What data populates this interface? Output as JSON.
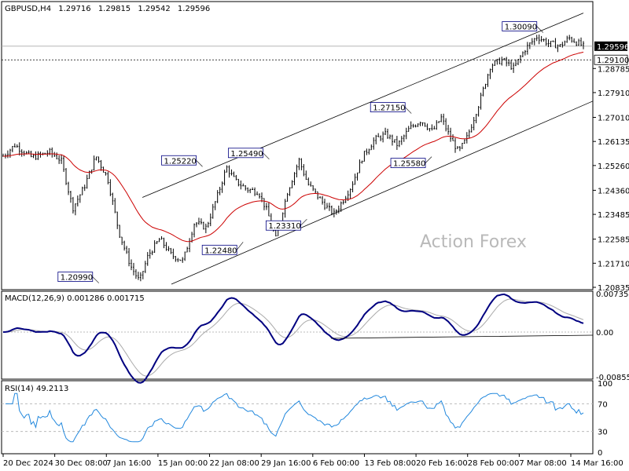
{
  "header": {
    "symbol": "GBPUSD,H4",
    "open": "1.29716",
    "high": "1.29815",
    "low": "1.29542",
    "close": "1.29596"
  },
  "watermark": "Action Forex",
  "colors": {
    "candle": "#000000",
    "ma": "#cc0000",
    "macd": "#000080",
    "signal": "#aaaaaa",
    "rsi": "#2288dd",
    "grid": "#bbbbbb"
  },
  "chart_data": [
    {
      "type": "candlestick",
      "name": "price",
      "ylim": [
        1.20835,
        1.3116
      ],
      "y_ticks": [
        "1.28785",
        "1.27910",
        "1.27010",
        "1.26135",
        "1.25260",
        "1.24360",
        "1.23485",
        "1.22585",
        "1.21710",
        "1.20835"
      ],
      "current_price_label": "1.29596",
      "reference_level_label": "1.29100",
      "annotations": [
        {
          "label": "1.20990",
          "value": 1.2099
        },
        {
          "label": "1.25220",
          "value": 1.2522
        },
        {
          "label": "1.25490",
          "value": 1.2549
        },
        {
          "label": "1.22480",
          "value": 1.2248
        },
        {
          "label": "1.23310",
          "value": 1.2331
        },
        {
          "label": "1.27150",
          "value": 1.2715
        },
        {
          "label": "1.25580",
          "value": 1.2558
        },
        {
          "label": "1.30090",
          "value": 1.3009
        }
      ],
      "trend_channel": {
        "upper": [
          [
            0.24,
            1.241
          ],
          [
            1.0,
            1.308
          ]
        ],
        "lower": [
          [
            0.29,
            1.2095
          ],
          [
            1.0,
            1.276
          ]
        ]
      },
      "ma_label": "",
      "x_tick_labels": [
        "20 Dec 2024",
        "30 Dec 08:00",
        "7 Jan 16:00",
        "15 Jan 00:00",
        "22 Jan 08:00",
        "29 Jan 16:00",
        "6 Feb 00:00",
        "13 Feb 08:00",
        "20 Feb 16:00",
        "28 Feb 00:00",
        "7 Mar 08:00",
        "14 Mar 16:00"
      ]
    },
    {
      "type": "line",
      "name": "MACD(12,26,9) 0.001286 0.001715",
      "label": "MACD(12,26,9) 0.001286 0.001715",
      "ylim": [
        -0.008558,
        0.007354
      ],
      "y_ticks": [
        "0.007354",
        "0.00",
        "-0.008558"
      ],
      "macd_value": 0.001286,
      "signal_value": 0.001715
    },
    {
      "type": "line",
      "name": "RSI(14) 49.2113",
      "label": "RSI(14) 49.2113",
      "ylim": [
        0,
        100
      ],
      "y_ticks": [
        "100",
        "70",
        "30",
        "0"
      ],
      "levels": [
        70,
        30
      ],
      "last_value": 49.2113
    }
  ]
}
